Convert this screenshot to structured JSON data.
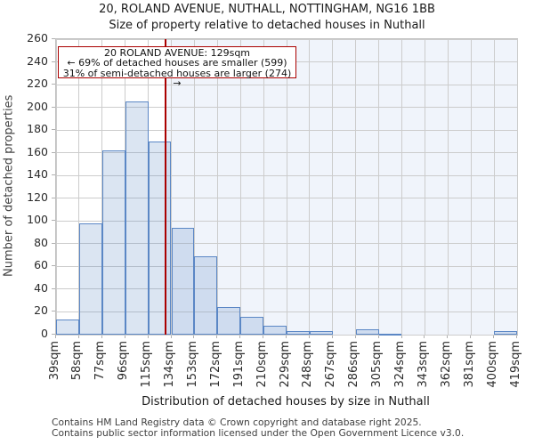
{
  "header": {
    "title": "20, ROLAND AVENUE, NUTHALL, NOTTINGHAM, NG16 1BB",
    "subtitle": "Size of property relative to detached houses in Nuthall"
  },
  "chart_data": {
    "type": "bar",
    "title": "20, ROLAND AVENUE, NUTHALL, NOTTINGHAM, NG16 1BB — Size of property relative to detached houses in Nuthall",
    "xlabel": "Distribution of detached houses by size in Nuthall",
    "ylabel": "Number of detached properties",
    "categories": [
      "39sqm",
      "58sqm",
      "77sqm",
      "96sqm",
      "115sqm",
      "134sqm",
      "153sqm",
      "172sqm",
      "191sqm",
      "210sqm",
      "229sqm",
      "248sqm",
      "267sqm",
      "286sqm",
      "305sqm",
      "324sqm",
      "343sqm",
      "362sqm",
      "381sqm",
      "400sqm",
      "419sqm"
    ],
    "bin_edges_sqm": [
      39,
      58,
      77,
      96,
      115,
      134,
      153,
      172,
      191,
      210,
      229,
      248,
      267,
      286,
      305,
      324,
      343,
      362,
      381,
      400,
      419
    ],
    "values": [
      13,
      98,
      162,
      205,
      170,
      94,
      69,
      24,
      16,
      8,
      3,
      3,
      0,
      5,
      1,
      0,
      0,
      0,
      0,
      3
    ],
    "ylim": [
      0,
      260
    ],
    "ytick_step": 20,
    "grid": true,
    "legend": false,
    "marker": {
      "value_sqm": 129
    },
    "annotation": {
      "line1": "20 ROLAND AVENUE: 129sqm",
      "line2": "← 69% of detached houses are smaller (599)",
      "line3": "31% of semi-detached houses are larger (274) →"
    },
    "colors": {
      "bar_fill": "rgba(91,135,197,0.22)",
      "bar_border": "#5b87c5",
      "grid": "#cccccc",
      "shade_right": "#f0f4fb",
      "marker_line": "#aa0000",
      "annotation_border": "#aa0000"
    }
  },
  "footer": {
    "line1": "Contains HM Land Registry data © Crown copyright and database right 2025.",
    "line2": "Contains public sector information licensed under the Open Government Licence v3.0."
  }
}
